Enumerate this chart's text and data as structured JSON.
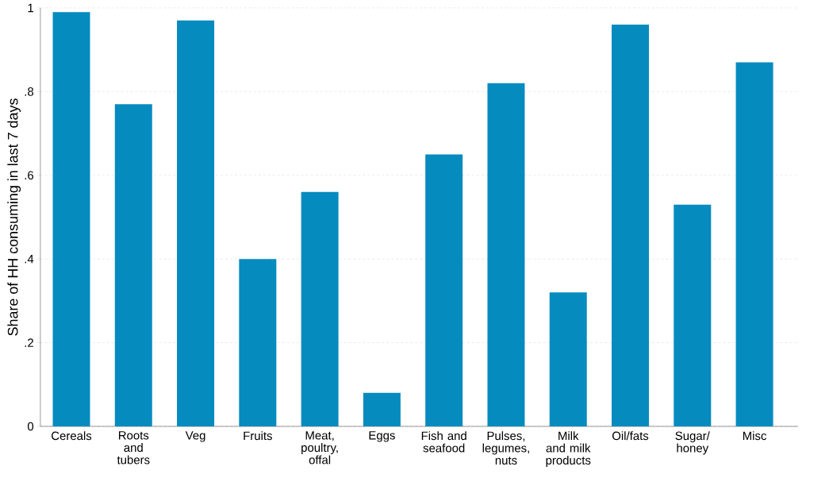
{
  "chart_data": {
    "type": "bar",
    "ylabel": "Share of HH consuming in last 7 days",
    "categories": [
      "Cereals",
      "Roots and tubers",
      "Veg",
      "Fruits",
      "Meat, poultry, offal",
      "Eggs",
      "Fish and seafood",
      "Pulses, legumes, nuts",
      "Milk and milk products",
      "Oil/fats",
      "Sugar/ honey",
      "Misc"
    ],
    "values": [
      0.99,
      0.77,
      0.97,
      0.4,
      0.56,
      0.08,
      0.65,
      0.82,
      0.32,
      0.96,
      0.53,
      0.87
    ],
    "color": "#068bbf",
    "ylim": [
      0,
      1
    ],
    "yticks": [
      0,
      {
        "value": 0.2,
        "label": ".2"
      },
      {
        "value": 0.4,
        "label": ".4"
      },
      {
        "value": 0.6,
        "label": ".6"
      },
      {
        "value": 0.8,
        "label": ".8"
      },
      1
    ],
    "grid": "y"
  }
}
